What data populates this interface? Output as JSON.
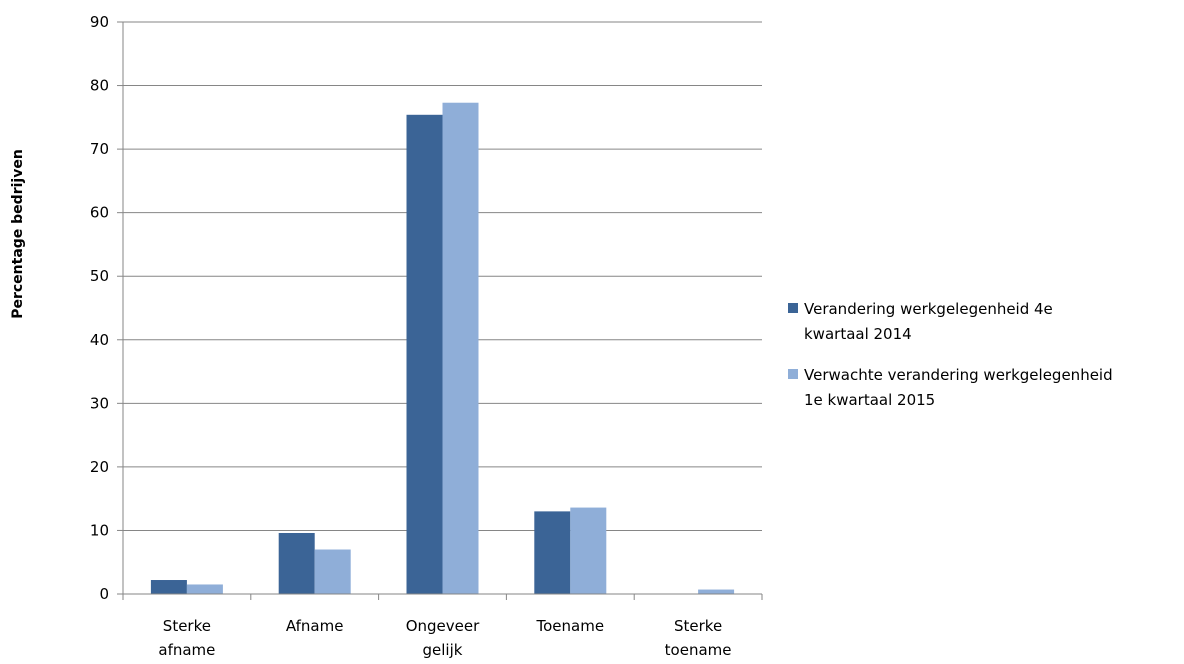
{
  "chart_data": {
    "type": "bar",
    "title": "",
    "xlabel": "",
    "ylabel": "Percentage bedrijven",
    "ylim": [
      0,
      90
    ],
    "yticks": [
      0,
      10,
      20,
      30,
      40,
      50,
      60,
      70,
      80,
      90
    ],
    "grid": true,
    "legend_position": "right",
    "categories": [
      [
        "Sterke",
        "afname"
      ],
      [
        "Afname"
      ],
      [
        "Ongeveer",
        "gelijk"
      ],
      [
        "Toename"
      ],
      [
        "Sterke",
        "toename"
      ]
    ],
    "series": [
      {
        "name": "Verandering werkgelegenheid 4e kwartaal 2014",
        "name_lines": [
          "Verandering werkgelegenheid 4e",
          "kwartaal 2014"
        ],
        "color": "#3b6496",
        "values": [
          2.2,
          9.6,
          75.4,
          13.0,
          0
        ]
      },
      {
        "name": "Verwachte verandering werkgelegenheid 1e kwartaal 2015",
        "name_lines": [
          "Verwachte verandering werkgelegenheid",
          "1e kwartaal 2015"
        ],
        "color": "#8faed8",
        "values": [
          1.5,
          7.0,
          77.3,
          13.6,
          0.7
        ]
      }
    ]
  }
}
